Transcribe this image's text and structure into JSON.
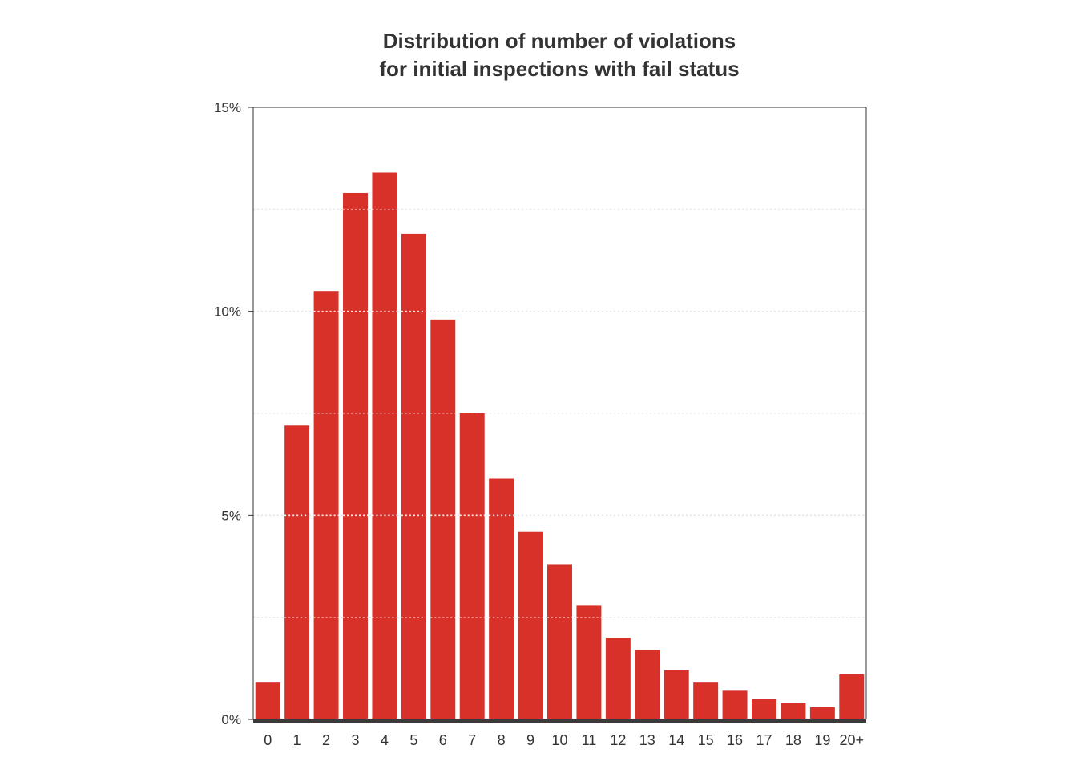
{
  "chart_data": {
    "type": "bar",
    "title": [
      "Distribution of number of violations",
      "for initial inspections with fail status"
    ],
    "xlabel": "",
    "ylabel": "",
    "categories": [
      "0",
      "1",
      "2",
      "3",
      "4",
      "5",
      "6",
      "7",
      "8",
      "9",
      "10",
      "11",
      "12",
      "13",
      "14",
      "15",
      "16",
      "17",
      "18",
      "19",
      "20+"
    ],
    "values": [
      0.9,
      7.2,
      10.5,
      12.9,
      13.4,
      11.9,
      9.8,
      7.5,
      5.9,
      4.6,
      3.8,
      2.8,
      2.0,
      1.7,
      1.2,
      0.9,
      0.7,
      0.5,
      0.4,
      0.3,
      1.1
    ],
    "value_unit": "%",
    "ylim": [
      0,
      15
    ],
    "yticks": [
      0,
      5,
      10,
      15
    ],
    "ytick_labels": [
      "0%",
      "5%",
      "10%",
      "15%"
    ],
    "grid": "horizontal dotted",
    "legend": "none",
    "colors": {
      "bar": "#d7312a",
      "text": "#333333",
      "axis": "#333333",
      "baseline": "#3a3a3a",
      "grid_on_bar": "#ffffff",
      "grid_bg": "#dddddd"
    }
  }
}
